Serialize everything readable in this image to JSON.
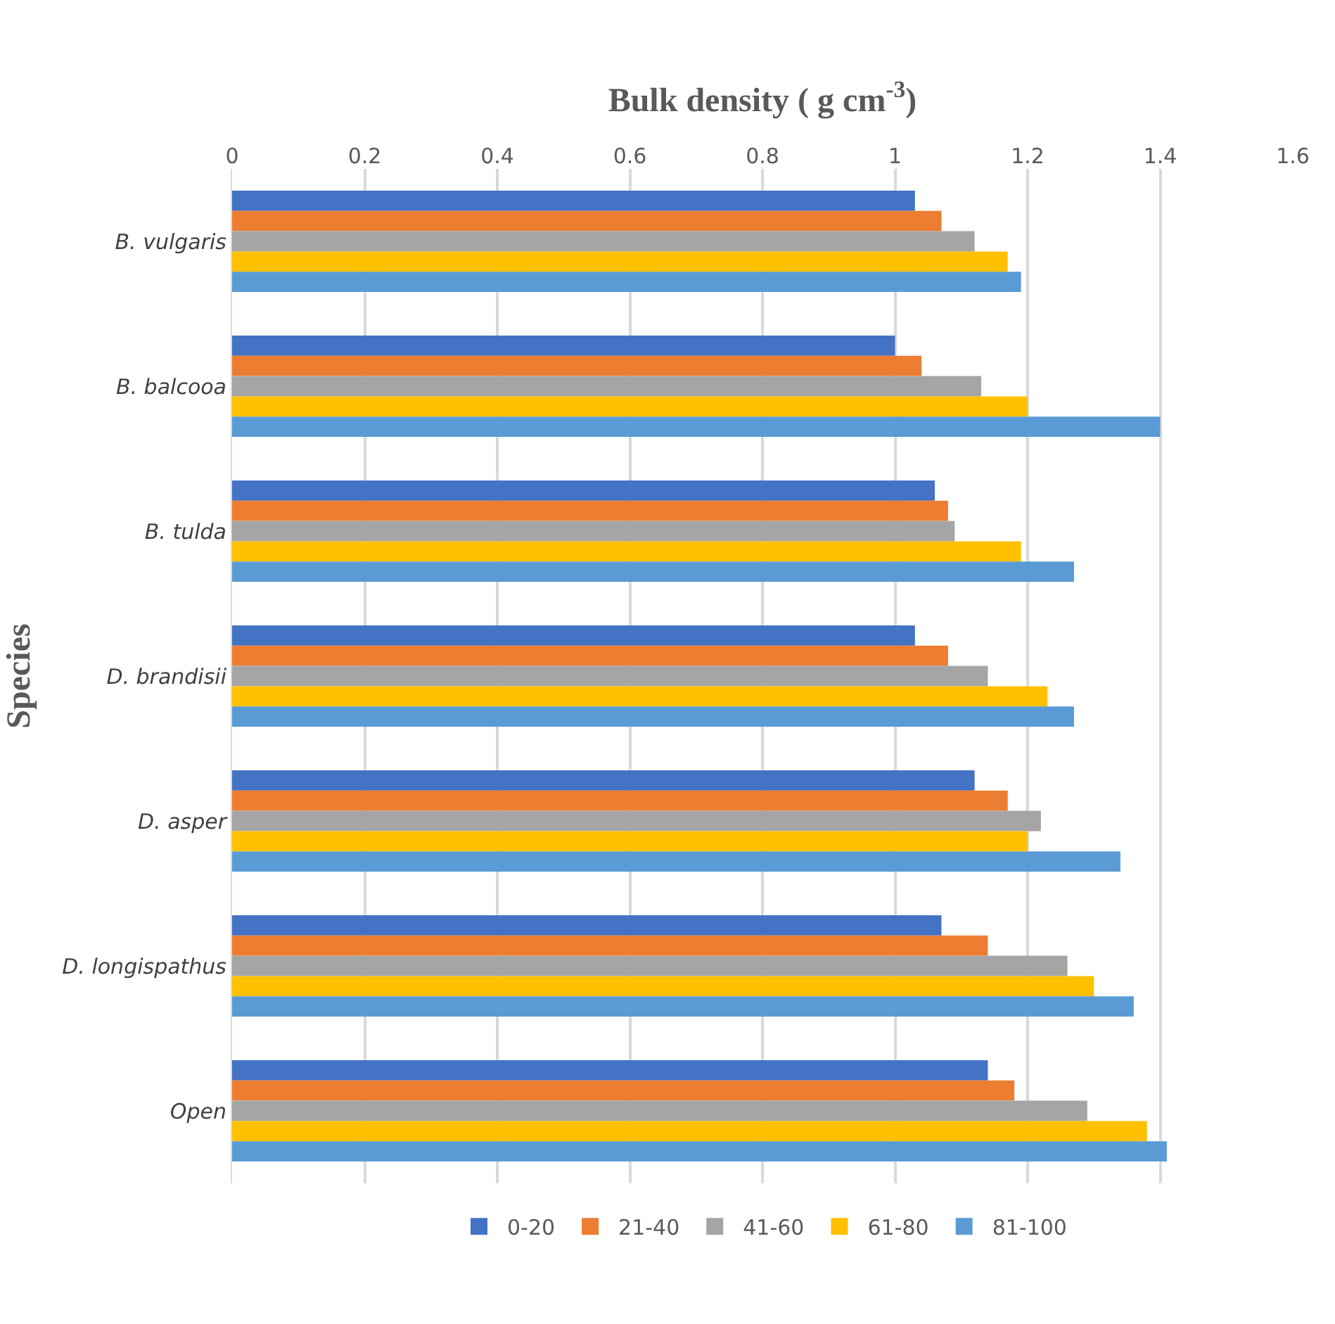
{
  "chart_data": {
    "type": "bar",
    "orientation": "horizontal",
    "xlabel": "Bulk density ( g cm$^{-3}$)",
    "ylabel": "Species",
    "categories": [
      "B. vulgaris",
      "B. balcooa",
      "B. tulda",
      "D. brandisii",
      "D. asper",
      "D. longispathus",
      "Open"
    ],
    "series": [
      {
        "name": "0-20",
        "color": "#4472c4",
        "values": [
          1.03,
          1.0,
          1.06,
          1.03,
          1.12,
          1.07,
          1.14
        ]
      },
      {
        "name": "21-40",
        "color": "#ed7d31",
        "values": [
          1.07,
          1.04,
          1.08,
          1.08,
          1.17,
          1.14,
          1.18
        ]
      },
      {
        "name": "41-60",
        "color": "#a5a5a5",
        "values": [
          1.12,
          1.13,
          1.09,
          1.14,
          1.22,
          1.26,
          1.29
        ]
      },
      {
        "name": "61-80",
        "color": "#ffc000",
        "values": [
          1.17,
          1.2,
          1.19,
          1.23,
          1.2,
          1.3,
          1.38
        ]
      },
      {
        "name": "81-100",
        "color": "#5b9bd5",
        "values": [
          1.19,
          1.4,
          1.27,
          1.27,
          1.34,
          1.36,
          1.41
        ]
      }
    ],
    "xlim": [
      0,
      1.6
    ],
    "xticks": [
      0,
      0.2,
      0.4,
      0.6,
      0.8,
      1,
      1.2,
      1.4,
      1.6
    ],
    "grid": "x",
    "legend": "bottom"
  }
}
